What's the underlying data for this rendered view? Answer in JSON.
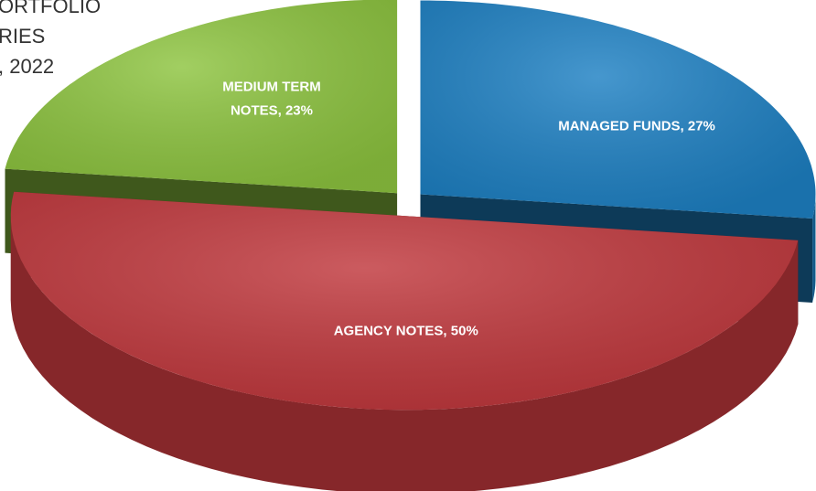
{
  "chart_data": {
    "type": "pie3d",
    "title_lines": [
      "ORTFOLIO",
      "RIES",
      ", 2022"
    ],
    "values": [
      27,
      50,
      23
    ],
    "value_labels": [
      [
        "MANAGED FUNDS, 27%"
      ],
      [
        "AGENCY NOTES, 50%"
      ],
      [
        "MEDIUM TERM",
        "NOTES, 23%"
      ]
    ],
    "colors": [
      "#1d80c3",
      "#c0373c",
      "#8dc43f"
    ]
  }
}
